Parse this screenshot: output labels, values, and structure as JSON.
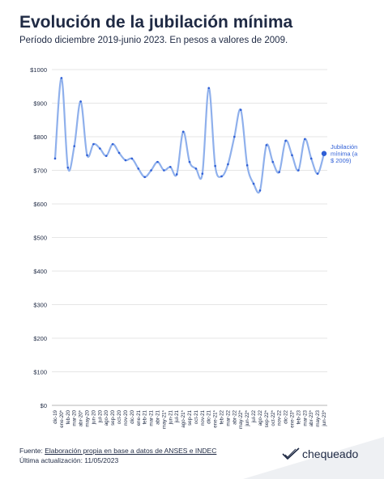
{
  "title": "Evolución de la jubilación mínima",
  "subtitle": "Período diciembre 2019-junio 2023. En pesos a valores de 2009.",
  "footer": {
    "source_label": "Fuente: ",
    "source_link": "Elaboración propia en base a datos de ANSES e INDEC",
    "updated": "Última actualización: 11/05/2023",
    "brand": "chequeado"
  },
  "colors": {
    "line": "#8fb0ec",
    "point": "#2f5fd6",
    "grid": "#e6e6e6",
    "text": "#1f2a44",
    "footer_band": "#eef0f3"
  },
  "chart_data": {
    "type": "line",
    "title": "Evolución de la jubilación mínima",
    "subtitle": "Período diciembre 2019-junio 2023. En pesos a valores de 2009.",
    "xlabel": "",
    "ylabel": "",
    "ylim": [
      0,
      1000
    ],
    "yticks": [
      0,
      100,
      200,
      300,
      400,
      500,
      600,
      700,
      800,
      900,
      1000
    ],
    "ytick_labels": [
      "$0",
      "$100",
      "$200",
      "$300",
      "$400",
      "$500",
      "$600",
      "$700",
      "$800",
      "$900",
      "$1000"
    ],
    "grid": true,
    "series_label": "Jubilación mínima (a $ 2009)",
    "x": [
      "dic-19",
      "ene-20*",
      "feb-20",
      "mar-20",
      "abr-20*",
      "may-20",
      "jun-20",
      "jul-20",
      "ago-20",
      "sep-20",
      "oct-20",
      "nov-20",
      "dic-20",
      "ene-21",
      "feb-21",
      "mar-21",
      "abr-21",
      "may-21*",
      "jun-21",
      "jul-21",
      "ago-21*",
      "sep-21",
      "oct-21",
      "nov-21",
      "dic-21",
      "ene-21*",
      "feb-22",
      "mar-22",
      "abr-22",
      "may-22*",
      "jun-22*",
      "jul-22",
      "ago-22",
      "sep-22*",
      "oct-22*",
      "nov-22",
      "dic-22",
      "ene-23*",
      "feb-23",
      "mar-23",
      "abr-23*",
      "may-23",
      "jun-23*"
    ],
    "values": [
      735,
      975,
      708,
      772,
      905,
      745,
      778,
      765,
      743,
      778,
      752,
      730,
      735,
      705,
      680,
      700,
      725,
      700,
      710,
      688,
      815,
      725,
      705,
      690,
      945,
      713,
      682,
      718,
      800,
      880,
      715,
      660,
      640,
      775,
      725,
      695,
      788,
      745,
      700,
      793,
      735,
      690,
      750
    ]
  }
}
